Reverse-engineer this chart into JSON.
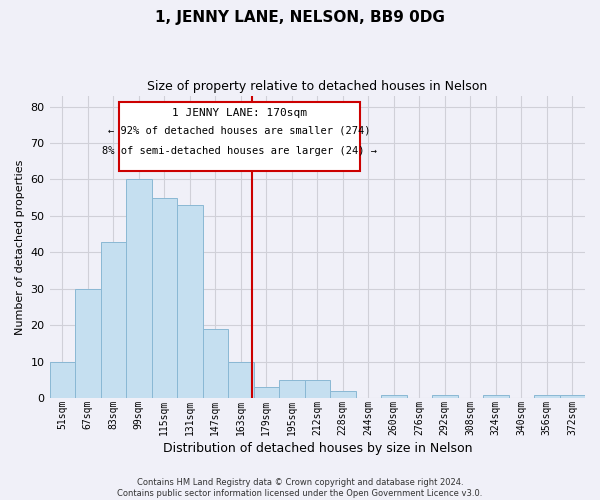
{
  "title": "1, JENNY LANE, NELSON, BB9 0DG",
  "subtitle": "Size of property relative to detached houses in Nelson",
  "xlabel": "Distribution of detached houses by size in Nelson",
  "ylabel": "Number of detached properties",
  "bar_labels": [
    "51sqm",
    "67sqm",
    "83sqm",
    "99sqm",
    "115sqm",
    "131sqm",
    "147sqm",
    "163sqm",
    "179sqm",
    "195sqm",
    "212sqm",
    "228sqm",
    "244sqm",
    "260sqm",
    "276sqm",
    "292sqm",
    "308sqm",
    "324sqm",
    "340sqm",
    "356sqm",
    "372sqm"
  ],
  "bar_values": [
    10,
    30,
    43,
    60,
    55,
    53,
    19,
    10,
    3,
    5,
    5,
    2,
    0,
    1,
    0,
    1,
    0,
    1,
    0,
    1,
    1
  ],
  "bar_color": "#c5dff0",
  "bar_edge_color": "#8ab8d4",
  "ylim": [
    0,
    83
  ],
  "yticks": [
    0,
    10,
    20,
    30,
    40,
    50,
    60,
    70,
    80
  ],
  "grid_color": "#d0d0d8",
  "vline_x_index": 7.43,
  "vline_color": "#cc0000",
  "annotation_title": "1 JENNY LANE: 170sqm",
  "annotation_line1": "← 92% of detached houses are smaller (274)",
  "annotation_line2": "8% of semi-detached houses are larger (24) →",
  "annotation_box_color": "#ffffff",
  "annotation_box_edge": "#cc0000",
  "footer_line1": "Contains HM Land Registry data © Crown copyright and database right 2024.",
  "footer_line2": "Contains public sector information licensed under the Open Government Licence v3.0.",
  "background_color": "#f0f0f8",
  "plot_background": "#f0f0f8",
  "title_fontsize": 11,
  "subtitle_fontsize": 9
}
